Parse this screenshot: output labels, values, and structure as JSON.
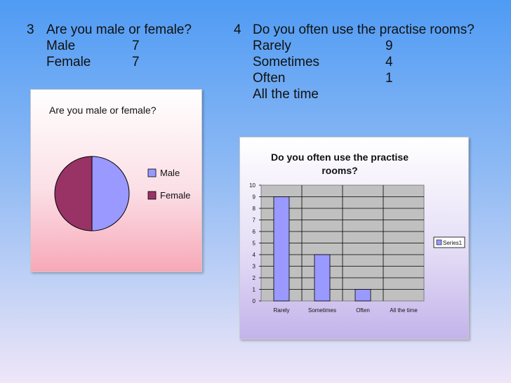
{
  "questions": {
    "q3": {
      "number": "3",
      "text": "Are you male or female?",
      "answers": [
        {
          "label": "Male",
          "value": "7"
        },
        {
          "label": "Female",
          "value": "7"
        }
      ]
    },
    "q4": {
      "number": "4",
      "text": "Do you often use the practise rooms?",
      "answers": [
        {
          "label": "Rarely",
          "value": "9"
        },
        {
          "label": "Sometimes",
          "value": "4"
        },
        {
          "label": "Often",
          "value": "1"
        },
        {
          "label": "All the time",
          "value": ""
        }
      ]
    }
  },
  "chart_data": [
    {
      "type": "pie",
      "title": "Are you male or female?",
      "categories": [
        "Male",
        "Female"
      ],
      "values": [
        7,
        7
      ],
      "colors": [
        "#9999ff",
        "#993366"
      ],
      "legend": "right"
    },
    {
      "type": "bar",
      "title_lines": [
        "Do you often use the practise",
        "rooms?"
      ],
      "categories": [
        "Rarely",
        "Sometimes",
        "Often",
        "All the time"
      ],
      "series": [
        {
          "name": "Series1",
          "values": [
            9,
            4,
            1,
            0
          ],
          "color": "#9999ff"
        }
      ],
      "ylim": [
        0,
        10
      ],
      "yticks": [
        0,
        1,
        2,
        3,
        4,
        5,
        6,
        7,
        8,
        9,
        10
      ],
      "grid": true,
      "plot_background": "#c0c0c0",
      "legend": "right"
    }
  ]
}
